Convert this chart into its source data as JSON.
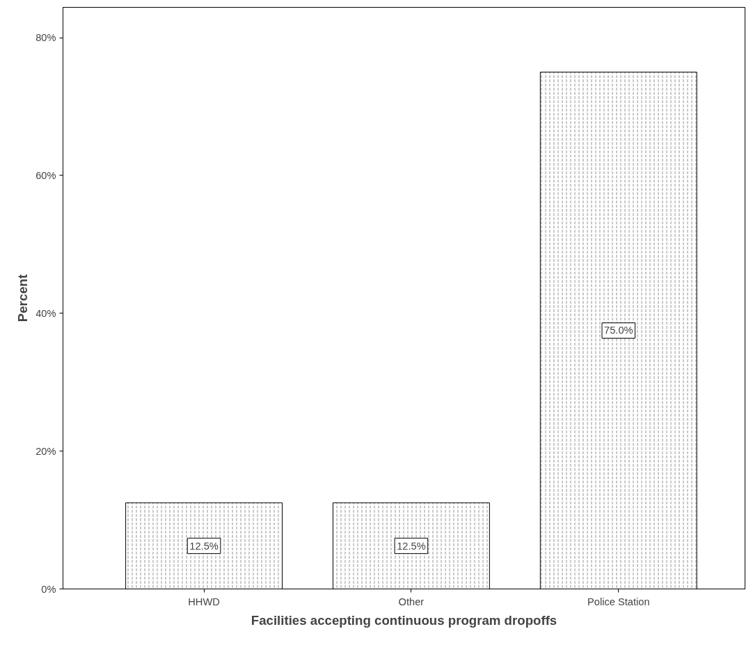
{
  "chart_data": {
    "type": "bar",
    "xlabel": "Facilities accepting continuous program dropoffs",
    "ylabel": "Percent",
    "categories": [
      "HHWD",
      "Other",
      "Police Station"
    ],
    "values": [
      12.5,
      12.5,
      75.0
    ],
    "value_labels": [
      "12.5%",
      "12.5%",
      "75.0%"
    ],
    "color": "#ffffff",
    "ylim": [
      0,
      84.4
    ],
    "yticks": [
      {
        "value": 0,
        "label": "0%"
      },
      {
        "value": 20,
        "label": "20%"
      },
      {
        "value": 40,
        "label": "40%"
      },
      {
        "value": 60,
        "label": "60%"
      },
      {
        "value": 80,
        "label": "80%"
      }
    ],
    "grid": false
  }
}
